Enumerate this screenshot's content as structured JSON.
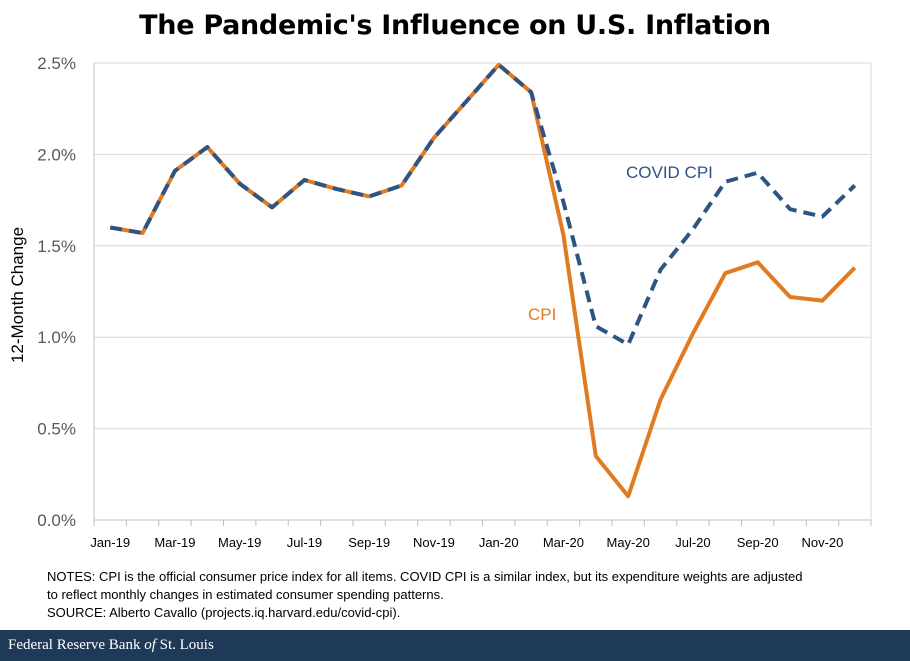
{
  "chart_data": {
    "type": "line",
    "title": "The Pandemic's Influence on U.S. Inflation",
    "ylabel": "12-Month Change",
    "xlabel": "",
    "ylim": [
      0,
      2.5
    ],
    "y_ticks": [
      "0.0%",
      "0.5%",
      "1.0%",
      "1.5%",
      "2.0%",
      "2.5%"
    ],
    "y_tick_values": [
      0,
      0.5,
      1.0,
      1.5,
      2.0,
      2.5
    ],
    "x": [
      "Jan-19",
      "Feb-19",
      "Mar-19",
      "Apr-19",
      "May-19",
      "Jun-19",
      "Jul-19",
      "Aug-19",
      "Sep-19",
      "Oct-19",
      "Nov-19",
      "Dec-19",
      "Jan-20",
      "Feb-20",
      "Mar-20",
      "Apr-20",
      "May-20",
      "Jun-20",
      "Jul-20",
      "Aug-20",
      "Sep-20",
      "Oct-20",
      "Nov-20",
      "Dec-20"
    ],
    "x_tick_labels": [
      "Jan-19",
      "Mar-19",
      "May-19",
      "Jul-19",
      "Sep-19",
      "Nov-19",
      "Jan-20",
      "Mar-20",
      "May-20",
      "Jul-20",
      "Sep-20",
      "Nov-20"
    ],
    "series": [
      {
        "name": "CPI",
        "color": "#E07B22",
        "style": "solid",
        "values": [
          1.6,
          1.57,
          1.91,
          2.04,
          1.84,
          1.71,
          1.86,
          1.81,
          1.77,
          1.83,
          2.09,
          2.29,
          2.49,
          2.34,
          1.56,
          0.35,
          0.13,
          0.66,
          1.02,
          1.35,
          1.41,
          1.22,
          1.2,
          1.38
        ]
      },
      {
        "name": "COVID CPI",
        "color": "#2E5484",
        "style": "dashed",
        "values": [
          1.6,
          1.57,
          1.91,
          2.04,
          1.84,
          1.71,
          1.86,
          1.81,
          1.77,
          1.83,
          2.09,
          2.29,
          2.49,
          2.34,
          1.74,
          1.06,
          0.96,
          1.37,
          1.59,
          1.85,
          1.9,
          1.7,
          1.66,
          1.83
        ]
      }
    ],
    "annotations": [
      "COVID CPI",
      "CPI"
    ]
  },
  "notes": {
    "line1": "NOTES: CPI is the official consumer price index for all items. COVID CPI is a similar index,  but its expenditure weights are  adjusted",
    "line2": "to reflect monthly  changes in estimated consumer spending patterns.",
    "line3": "SOURCE:  Alberto Cavallo (projects.iq.harvard.edu/covid-cpi)."
  },
  "footer": {
    "part1": "Federal Reserve Bank ",
    "part2": "of",
    "part3": " St. Louis"
  },
  "colors": {
    "cpi": "#E07B22",
    "covid_cpi": "#2E5484",
    "footer_bg": "#1f3a58",
    "grid": "#d9d9d9"
  }
}
